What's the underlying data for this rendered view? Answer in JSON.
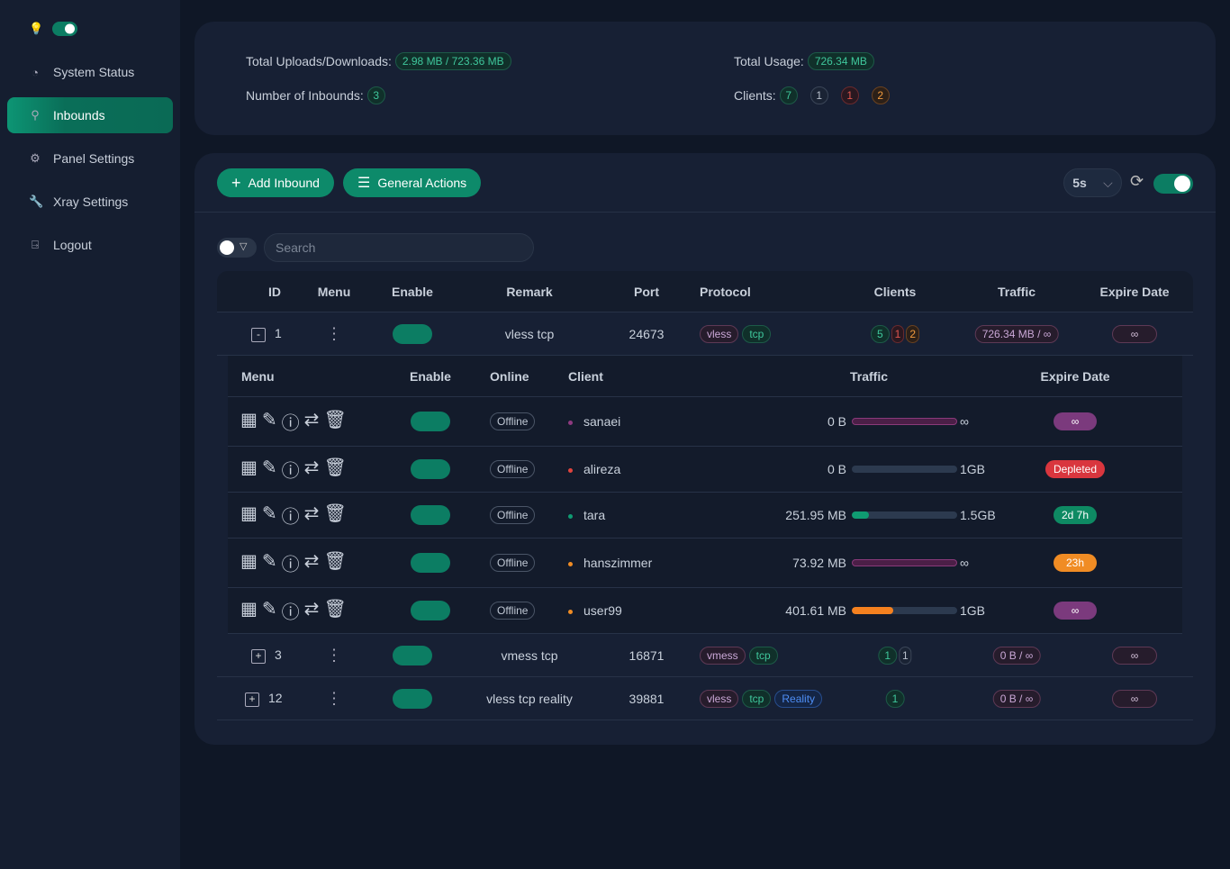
{
  "sidebar": {
    "items": [
      {
        "label": "System Status",
        "icon": "dashboard-icon",
        "glyph": "◔"
      },
      {
        "label": "Inbounds",
        "icon": "user-icon",
        "glyph": "⚲",
        "active": true
      },
      {
        "label": "Panel Settings",
        "icon": "gear-icon",
        "glyph": "⚙"
      },
      {
        "label": "Xray Settings",
        "icon": "wrench-icon",
        "glyph": "🔧"
      },
      {
        "label": "Logout",
        "icon": "logout-icon",
        "glyph": "⍈"
      }
    ]
  },
  "stats": {
    "uploads_label": "Total Uploads/Downloads:",
    "uploads_value": "2.98 MB / 723.36 MB",
    "usage_label": "Total Usage:",
    "usage_value": "726.34 MB",
    "inbounds_label": "Number of Inbounds:",
    "inbounds_value": "3",
    "clients_label": "Clients:",
    "clients_counts": [
      "7",
      "1",
      "1",
      "2"
    ]
  },
  "toolbar": {
    "add_label": "Add Inbound",
    "general_label": "General Actions",
    "refresh_interval": "5s",
    "auto_refresh": true
  },
  "search": {
    "placeholder": "Search"
  },
  "table": {
    "headers": [
      "ID",
      "Menu",
      "Enable",
      "Remark",
      "Port",
      "Protocol",
      "Clients",
      "Traffic",
      "Expire Date"
    ],
    "client_headers": [
      "Menu",
      "Enable",
      "Online",
      "Client",
      "Traffic",
      "Expire Date"
    ],
    "inbounds": [
      {
        "id": "1",
        "expanded": true,
        "enabled": true,
        "remark": "vless tcp",
        "port": "24673",
        "protocol": [
          "vless",
          "tcp"
        ],
        "clients": [
          "5",
          "1",
          "2"
        ],
        "traffic": "726.34 MB / ∞",
        "expire": "∞",
        "clients_list": [
          {
            "enabled": true,
            "online": "Offline",
            "name": "sanaei",
            "dot": "#8e3a80",
            "used": "0 B",
            "total": "∞",
            "progress": 0,
            "unlimited": true,
            "expire": "∞",
            "expire_color": "#7b3a7d"
          },
          {
            "enabled": true,
            "online": "Offline",
            "name": "alireza",
            "dot": "#e0443e",
            "used": "0 B",
            "total": "1GB",
            "progress": 0,
            "unlimited": false,
            "expire": "Depleted",
            "expire_color": "#d9363e"
          },
          {
            "enabled": true,
            "online": "Offline",
            "name": "tara",
            "dot": "#0f9b72",
            "used": "251.95 MB",
            "total": "1.5GB",
            "progress": 16,
            "unlimited": false,
            "bar_color": "#0f9b72",
            "expire": "2d 7h",
            "expire_color": "#0e8a63"
          },
          {
            "enabled": true,
            "online": "Offline",
            "name": "hanszimmer",
            "dot": "#f08c24",
            "used": "73.92 MB",
            "total": "∞",
            "progress": 0,
            "unlimited": true,
            "expire": "23h",
            "expire_color": "#f08c24"
          },
          {
            "enabled": true,
            "online": "Offline",
            "name": "user99",
            "dot": "#f08c24",
            "used": "401.61 MB",
            "total": "1GB",
            "progress": 39,
            "unlimited": false,
            "bar_color": "#f5811f",
            "expire": "∞",
            "expire_color": "#7b3a7d"
          }
        ]
      },
      {
        "id": "3",
        "expanded": false,
        "enabled": true,
        "remark": "vmess tcp",
        "port": "16871",
        "protocol": [
          "vmess",
          "tcp"
        ],
        "clients": [
          "1",
          "1"
        ],
        "traffic": "0 B / ∞",
        "expire": "∞"
      },
      {
        "id": "12",
        "expanded": false,
        "enabled": true,
        "remark": "vless tcp reality",
        "port": "39881",
        "protocol": [
          "vless",
          "tcp",
          "Reality"
        ],
        "clients": [
          "1"
        ],
        "traffic": "0 B / ∞",
        "expire": "∞"
      }
    ]
  }
}
